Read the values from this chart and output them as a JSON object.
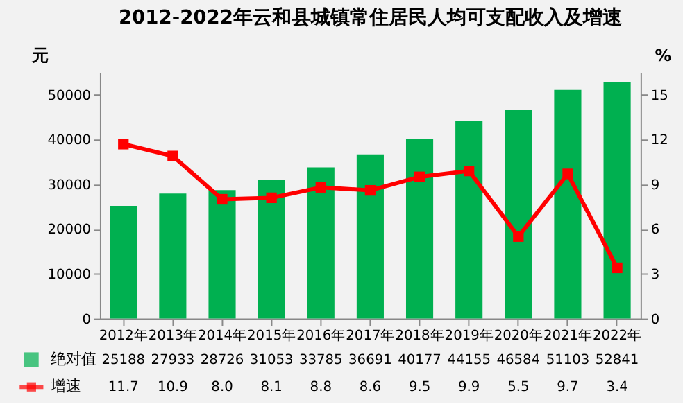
{
  "chart_data": {
    "type": "bar",
    "title": "2012-2022年云和县城镇常住居民人均可支配收入及增速",
    "ylabel": "元",
    "y2label": "%",
    "categories": [
      "2012年",
      "2013年",
      "2014年",
      "2015年",
      "2016年",
      "2017年",
      "2018年",
      "2019年",
      "2020年",
      "2021年",
      "2022年"
    ],
    "series": [
      {
        "name": "绝对值",
        "color": "#00b050",
        "values": [
          25188,
          27933,
          28726,
          31053,
          33785,
          36691,
          40177,
          44155,
          46584,
          51103,
          52841
        ]
      },
      {
        "name": "增速",
        "type": "line",
        "axis": "y2",
        "color": "#ff0000",
        "marker": "square",
        "values": [
          11.7,
          10.9,
          8.0,
          8.1,
          8.8,
          8.6,
          9.5,
          9.9,
          5.5,
          9.7,
          3.4
        ],
        "value_labels": [
          "11.7",
          "10.9",
          "8.0",
          "8.1",
          "8.8",
          "8.6",
          "9.5",
          "9.9",
          "5.5",
          "9.7",
          "3.4"
        ]
      }
    ],
    "ylim": [
      0,
      55000
    ],
    "yticks": [
      0,
      10000,
      20000,
      30000,
      40000,
      50000
    ],
    "y2lim": [
      0,
      16.5
    ],
    "y2ticks": [
      0,
      3,
      6,
      9,
      12,
      15
    ],
    "data_labels": true,
    "legend": "bottom left",
    "grid": false
  }
}
